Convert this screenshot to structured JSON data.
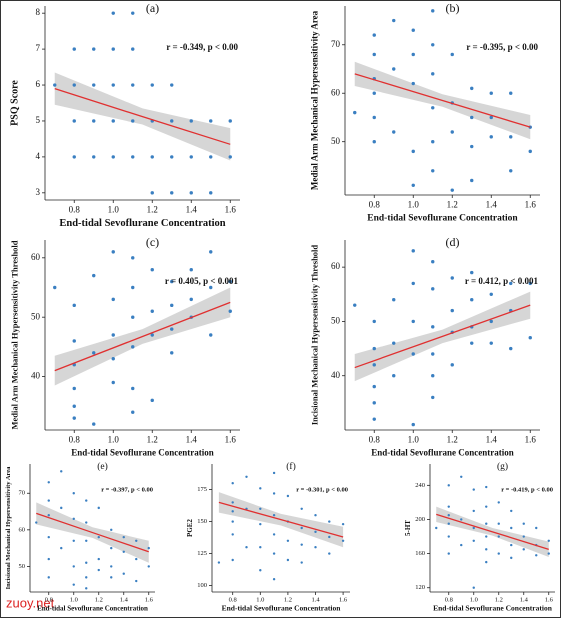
{
  "chart_data": [
    {
      "type": "scatter",
      "label": "(a)",
      "x_label": "End-tidal Sevoflurane Concentration",
      "y_label": "PSQ Score",
      "annotation": "r = -0.349, p < 0.00",
      "color": "#3a7fc1",
      "xlim": [
        0.65,
        1.65
      ],
      "xticks": [
        0.8,
        {
          "value": 1,
          "label": "1.0"
        },
        1.2,
        1.4,
        1.6
      ],
      "ylim": [
        2.8,
        8.2
      ],
      "yticks": [
        3,
        4,
        5,
        6,
        7,
        8
      ],
      "x": [
        0.7,
        0.8,
        0.8,
        0.8,
        0.8,
        0.9,
        0.9,
        0.9,
        0.9,
        1.0,
        1.0,
        1.0,
        1.0,
        1.0,
        1.1,
        1.1,
        1.1,
        1.1,
        1.1,
        1.2,
        1.2,
        1.2,
        1.2,
        1.3,
        1.3,
        1.3,
        1.3,
        1.4,
        1.4,
        1.4,
        1.5,
        1.5,
        1.5,
        1.6,
        1.6
      ],
      "y": [
        6,
        7,
        6,
        5,
        4,
        7,
        6,
        5,
        4,
        8,
        7,
        6,
        5,
        4,
        8,
        7,
        6,
        5,
        4,
        6,
        5,
        4,
        3,
        6,
        5,
        4,
        3,
        5,
        4,
        3,
        5,
        4,
        3,
        5,
        4
      ],
      "fit": {
        "color": "#e03030",
        "x": [
          0.7,
          1.15,
          1.6
        ],
        "y": [
          5.9,
          5.12,
          4.35
        ],
        "lower": [
          5.45,
          4.9,
          3.9
        ],
        "upper": [
          6.35,
          5.35,
          4.8
        ]
      }
    },
    {
      "type": "scatter",
      "label": "(b)",
      "x_label": "End-tidal Sevoflurane Concentration",
      "y_label": "Medial Arm Mechanical Hypersensitivity Area",
      "annotation": "r = -0.395, p < 0.00",
      "color": "#3a7fc1",
      "xlim": [
        0.65,
        1.65
      ],
      "xticks": [
        0.8,
        {
          "value": 1,
          "label": "1.0"
        },
        1.2,
        1.4,
        1.6
      ],
      "ylim": [
        39,
        78
      ],
      "yticks": [
        50,
        60,
        70
      ],
      "x": [
        0.7,
        0.8,
        0.8,
        0.8,
        0.8,
        0.8,
        0.8,
        0.9,
        0.9,
        0.9,
        1.0,
        1.0,
        1.0,
        1.0,
        1.0,
        1.1,
        1.1,
        1.1,
        1.1,
        1.1,
        1.1,
        1.2,
        1.2,
        1.2,
        1.2,
        1.3,
        1.3,
        1.3,
        1.3,
        1.4,
        1.4,
        1.4,
        1.5,
        1.5,
        1.5,
        1.6,
        1.6
      ],
      "y": [
        56,
        72,
        68,
        63,
        60,
        55,
        50,
        75,
        65,
        52,
        73,
        68,
        62,
        48,
        41,
        77,
        70,
        64,
        57,
        50,
        44,
        68,
        58,
        52,
        40,
        61,
        55,
        49,
        42,
        60,
        55,
        51,
        60,
        51,
        44,
        53,
        48
      ],
      "fit": {
        "color": "#e03030",
        "x": [
          0.7,
          1.15,
          1.6
        ],
        "y": [
          64,
          58.5,
          53
        ],
        "lower": [
          61.5,
          57.2,
          50.5
        ],
        "upper": [
          66.5,
          59.8,
          55.5
        ]
      }
    },
    {
      "type": "scatter",
      "label": "(c)",
      "x_label": "End-tidal Sevoflurane Concentration",
      "y_label": "Medial Arm Mechanical Hypersensitivity Threshold",
      "annotation": "r = 0.405, p < 0.001",
      "color": "#3a7fc1",
      "xlim": [
        0.65,
        1.65
      ],
      "xticks": [
        0.8,
        {
          "value": 1,
          "label": "1.0"
        },
        1.2,
        1.4,
        1.6
      ],
      "ylim": [
        31,
        63
      ],
      "yticks": [
        40,
        50,
        60
      ],
      "x": [
        0.7,
        0.8,
        0.8,
        0.8,
        0.8,
        0.8,
        0.8,
        0.9,
        0.9,
        0.9,
        1.0,
        1.0,
        1.0,
        1.0,
        1.0,
        1.1,
        1.1,
        1.1,
        1.1,
        1.1,
        1.1,
        1.2,
        1.2,
        1.2,
        1.2,
        1.3,
        1.3,
        1.3,
        1.3,
        1.4,
        1.4,
        1.4,
        1.5,
        1.5,
        1.5,
        1.6,
        1.6
      ],
      "y": [
        55,
        52,
        46,
        42,
        38,
        35,
        33,
        57,
        44,
        32,
        61,
        53,
        47,
        43,
        39,
        60,
        55,
        50,
        45,
        38,
        34,
        58,
        51,
        47,
        36,
        56,
        52,
        48,
        44,
        58,
        53,
        50,
        61,
        55,
        47,
        56,
        51
      ],
      "fit": {
        "color": "#e03030",
        "x": [
          0.7,
          1.15,
          1.6
        ],
        "y": [
          41,
          46.75,
          52.5
        ],
        "lower": [
          38.5,
          45.5,
          50
        ],
        "upper": [
          43.5,
          48,
          55
        ]
      }
    },
    {
      "type": "scatter",
      "label": "(d)",
      "x_label": "End-tidal Sevoflurane Concentration",
      "y_label": "Incisional Mechanical Hypersensitivity Threshold",
      "annotation": "r = 0.412, p < 0.001",
      "color": "#3a7fc1",
      "xlim": [
        0.65,
        1.65
      ],
      "xticks": [
        0.8,
        {
          "value": 1,
          "label": "1.0"
        },
        1.2,
        1.4,
        1.6
      ],
      "ylim": [
        30,
        65
      ],
      "yticks": [
        40,
        50,
        60
      ],
      "x": [
        0.7,
        0.8,
        0.8,
        0.8,
        0.8,
        0.8,
        0.8,
        0.9,
        0.9,
        0.9,
        1.0,
        1.0,
        1.0,
        1.0,
        1.0,
        1.1,
        1.1,
        1.1,
        1.1,
        1.1,
        1.1,
        1.2,
        1.2,
        1.2,
        1.2,
        1.3,
        1.3,
        1.3,
        1.3,
        1.4,
        1.4,
        1.4,
        1.5,
        1.5,
        1.5,
        1.6,
        1.6
      ],
      "y": [
        53,
        50,
        45,
        42,
        38,
        35,
        32,
        54,
        46,
        40,
        63,
        57,
        50,
        44,
        31,
        61,
        56,
        49,
        44,
        40,
        36,
        58,
        52,
        48,
        42,
        59,
        54,
        49,
        46,
        55,
        50,
        46,
        57,
        52,
        45,
        57,
        47
      ],
      "fit": {
        "color": "#e03030",
        "x": [
          0.7,
          1.15,
          1.6
        ],
        "y": [
          41.5,
          47.25,
          53
        ],
        "lower": [
          39,
          46,
          50.5
        ],
        "upper": [
          44,
          48.5,
          55.5
        ]
      }
    },
    {
      "type": "scatter",
      "label": "(e)",
      "x_label": "End-tidal Sevoflurane Concentration",
      "y_label": "Incisional Mechanical Hypersensitivity Area",
      "annotation": "r = -0.397, p < 0.00",
      "color": "#3a7fc1",
      "xlim": [
        0.65,
        1.65
      ],
      "xticks": [
        0.8,
        {
          "value": 1,
          "label": "1.0"
        },
        1.2,
        1.4,
        1.6
      ],
      "ylim": [
        43,
        78
      ],
      "yticks": [
        50,
        60,
        70
      ],
      "x": [
        0.7,
        0.8,
        0.8,
        0.8,
        0.8,
        0.8,
        0.8,
        0.9,
        0.9,
        0.9,
        1.0,
        1.0,
        1.0,
        1.0,
        1.0,
        1.1,
        1.1,
        1.1,
        1.1,
        1.1,
        1.1,
        1.2,
        1.2,
        1.2,
        1.2,
        1.3,
        1.3,
        1.3,
        1.3,
        1.4,
        1.4,
        1.4,
        1.5,
        1.5,
        1.5,
        1.6,
        1.6
      ],
      "y": [
        62,
        73,
        68,
        64,
        58,
        52,
        47,
        76,
        66,
        55,
        70,
        63,
        57,
        50,
        45,
        68,
        62,
        57,
        51,
        47,
        44,
        66,
        58,
        52,
        49,
        60,
        55,
        50,
        47,
        58,
        54,
        48,
        57,
        52,
        46,
        55,
        50
      ],
      "fit": {
        "color": "#e03030",
        "x": [
          0.7,
          1.15,
          1.6
        ],
        "y": [
          64.5,
          59.25,
          54
        ],
        "lower": [
          61.5,
          57.8,
          51
        ],
        "upper": [
          67.5,
          60.7,
          57
        ]
      }
    },
    {
      "type": "scatter",
      "label": "(f)",
      "x_label": "End-tidal Sevoflurane Concentration",
      "y_label": "PGE2",
      "annotation": "r = -0.301, p < 0.00",
      "color": "#3a7fc1",
      "xlim": [
        0.65,
        1.65
      ],
      "xticks": [
        0.8,
        {
          "value": 1,
          "label": "1.0"
        },
        1.2,
        1.4,
        1.6
      ],
      "ylim": [
        95,
        195
      ],
      "yticks": [
        100,
        125,
        150,
        175
      ],
      "x": [
        0.7,
        0.8,
        0.8,
        0.8,
        0.8,
        0.8,
        0.8,
        0.9,
        0.9,
        0.9,
        1.0,
        1.0,
        1.0,
        1.0,
        1.0,
        1.1,
        1.1,
        1.1,
        1.1,
        1.1,
        1.1,
        1.2,
        1.2,
        1.2,
        1.2,
        1.3,
        1.3,
        1.3,
        1.3,
        1.4,
        1.4,
        1.4,
        1.5,
        1.5,
        1.5,
        1.6,
        1.6
      ],
      "y": [
        118,
        180,
        165,
        158,
        150,
        140,
        120,
        185,
        160,
        130,
        176,
        160,
        148,
        130,
        112,
        188,
        172,
        155,
        140,
        125,
        105,
        170,
        150,
        135,
        120,
        160,
        145,
        132,
        118,
        155,
        142,
        130,
        150,
        138,
        125,
        148,
        135
      ],
      "fit": {
        "color": "#e03030",
        "x": [
          0.7,
          1.15,
          1.6
        ],
        "y": [
          165,
          151.5,
          138
        ],
        "lower": [
          157,
          147,
          130
        ],
        "upper": [
          173,
          156,
          146
        ]
      }
    },
    {
      "type": "scatter",
      "label": "(g)",
      "x_label": "End-tidal Sevoflurane Concentration",
      "y_label": "5-HT",
      "annotation": "r = -0.419, p < 0.00",
      "color": "#3a7fc1",
      "xlim": [
        0.65,
        1.65
      ],
      "xticks": [
        0.8,
        {
          "value": 1,
          "label": "1.0"
        },
        1.2,
        1.4,
        1.6
      ],
      "ylim": [
        115,
        265
      ],
      "yticks": [
        120,
        160,
        200,
        240
      ],
      "x": [
        0.7,
        0.8,
        0.8,
        0.8,
        0.8,
        0.8,
        0.8,
        0.9,
        0.9,
        0.9,
        1.0,
        1.0,
        1.0,
        1.0,
        1.0,
        1.1,
        1.1,
        1.1,
        1.1,
        1.1,
        1.1,
        1.2,
        1.2,
        1.2,
        1.2,
        1.3,
        1.3,
        1.3,
        1.3,
        1.4,
        1.4,
        1.4,
        1.5,
        1.5,
        1.5,
        1.6,
        1.6
      ],
      "y": [
        190,
        240,
        215,
        205,
        195,
        180,
        160,
        250,
        200,
        170,
        235,
        210,
        190,
        175,
        120,
        238,
        215,
        195,
        180,
        165,
        150,
        220,
        195,
        180,
        160,
        210,
        190,
        170,
        155,
        195,
        180,
        165,
        190,
        170,
        158,
        175,
        160
      ],
      "fit": {
        "color": "#e03030",
        "x": [
          0.7,
          1.15,
          1.6
        ],
        "y": [
          206,
          185.5,
          165
        ],
        "lower": [
          197,
          181,
          156
        ],
        "upper": [
          215,
          190,
          174
        ]
      }
    }
  ],
  "watermark": "zuoy.net"
}
